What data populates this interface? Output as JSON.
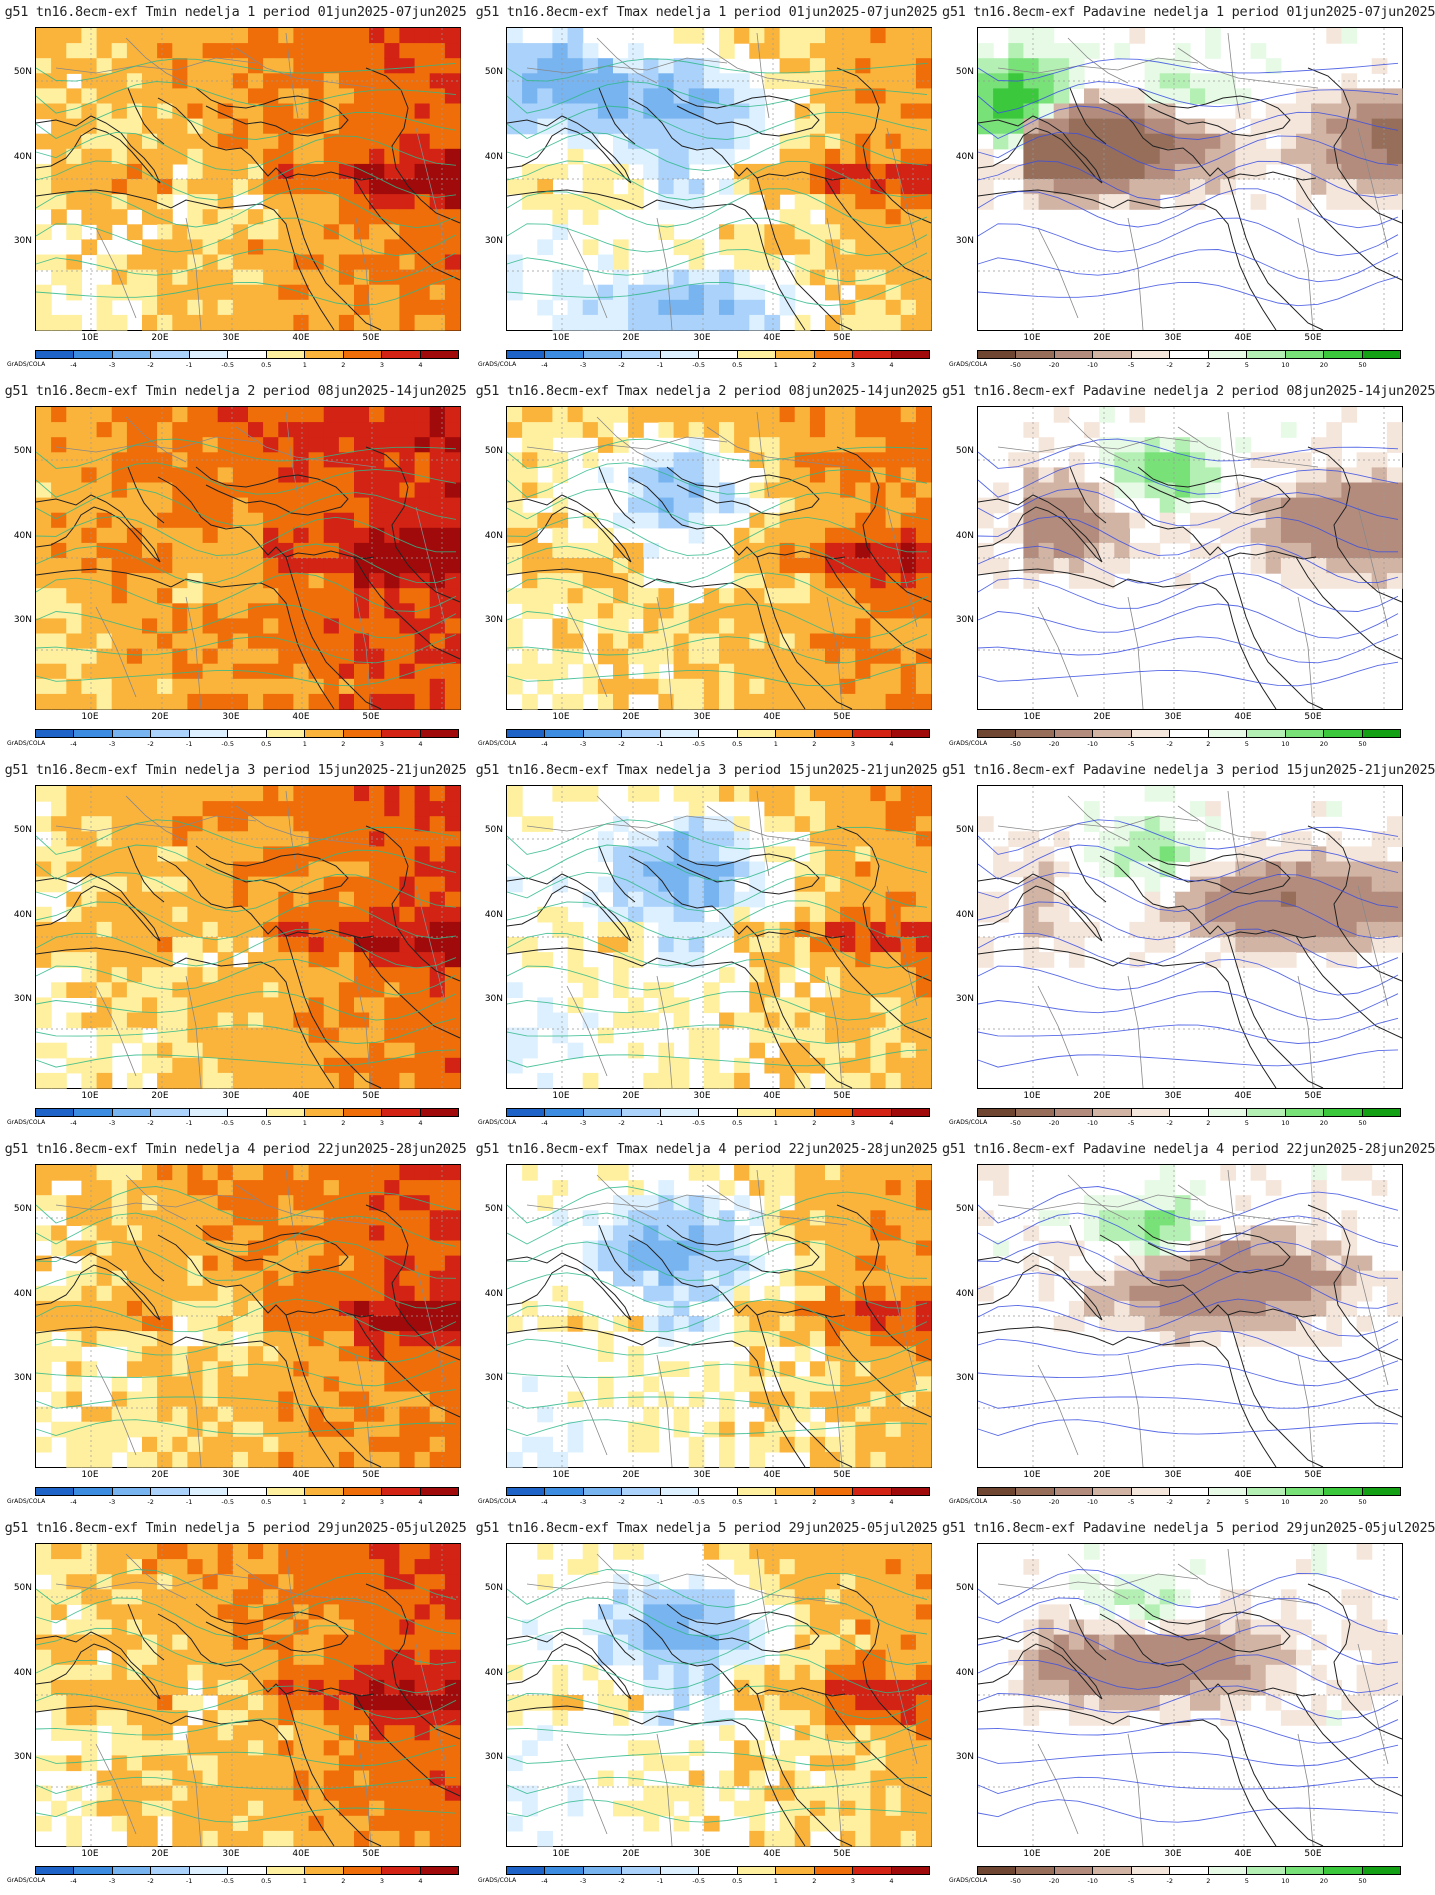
{
  "grads_label": "GrADS/COLA",
  "lat_labels": [
    "50N",
    "40N",
    "30N"
  ],
  "lon_labels": [
    "10E",
    "20E",
    "30E",
    "40E",
    "50E"
  ],
  "temp_colorbar": {
    "labels": [
      "-4",
      "-3",
      "-2",
      "-1",
      "-0.5",
      "0.5",
      "1",
      "2",
      "3",
      "4"
    ],
    "colors": [
      "#1e64c8",
      "#3c8ce1",
      "#78b4f0",
      "#aad2fa",
      "#dcf0ff",
      "#ffffff",
      "#fff0a0",
      "#fab43c",
      "#f06e0a",
      "#d22314",
      "#a00a0a"
    ]
  },
  "precip_colorbar": {
    "labels": [
      "-50",
      "-20",
      "-10",
      "-5",
      "-2",
      "2",
      "5",
      "10",
      "20",
      "50"
    ],
    "colors": [
      "#6e4632",
      "#966e5a",
      "#b48c7d",
      "#d2b4a5",
      "#f5e6dc",
      "#ffffff",
      "#e6fae6",
      "#b4f0b4",
      "#78e178",
      "#3cc83c",
      "#14a014"
    ]
  },
  "rows": [
    {
      "tmin": "g51 tn16.8ecm-exf Tmin nedelja 1 period 01jun2025-07jun2025",
      "tmax": "g51 tn16.8ecm-exf Tmax nedelja 1 period 01jun2025-07jun2025",
      "precip": "g51 tn16.8ecm-exf Padavine nedelja 1 period 01jun2025-07jun2025"
    },
    {
      "tmin": "g51 tn16.8ecm-exf Tmin nedelja 2 period 08jun2025-14jun2025",
      "tmax": "g51 tn16.8ecm-exf Tmax nedelja 2 period 08jun2025-14jun2025",
      "precip": "g51 tn16.8ecm-exf Padavine nedelja 2 period 08jun2025-14jun2025"
    },
    {
      "tmin": "g51 tn16.8ecm-exf Tmin nedelja 3 period 15jun2025-21jun2025",
      "tmax": "g51 tn16.8ecm-exf Tmax nedelja 3 period 15jun2025-21jun2025",
      "precip": "g51 tn16.8ecm-exf Padavine nedelja 3 period 15jun2025-21jun2025"
    },
    {
      "tmin": "g51 tn16.8ecm-exf Tmin nedelja 4 period 22jun2025-28jun2025",
      "tmax": "g51 tn16.8ecm-exf Tmax nedelja 4 period 22jun2025-28jun2025",
      "precip": "g51 tn16.8ecm-exf Padavine nedelja 4 period 22jun2025-28jun2025"
    },
    {
      "tmin": "g51 tn16.8ecm-exf Tmin nedelja 5 period 29jun2025-05jul2025",
      "tmax": "g51 tn16.8ecm-exf Tmax nedelja 5 period 29jun2025-05jul2025",
      "precip": "g51 tn16.8ecm-exf Padavine nedelja 5 period 29jun2025-05jul2025"
    }
  ]
}
